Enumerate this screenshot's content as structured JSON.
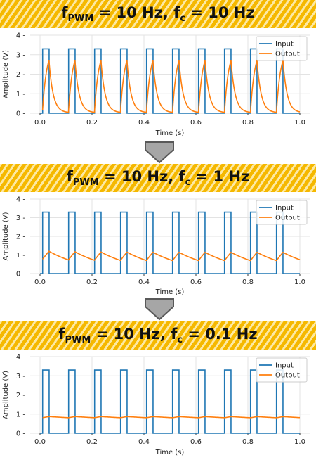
{
  "chart_data": [
    {
      "type": "line",
      "title": {
        "base": "f",
        "sub1": "PWM",
        "mid": " = 10 Hz, f",
        "sub2": "c",
        "end": " = 10 Hz"
      },
      "xlabel": "Time (s)",
      "ylabel": "Amplitude (V)",
      "xlim": [
        0,
        1.0
      ],
      "ylim": [
        0,
        4
      ],
      "xticks": [
        "0.0",
        "0.2",
        "0.4",
        "0.6",
        "0.8",
        "1.0"
      ],
      "yticks": [
        "0",
        "1",
        "2",
        "3",
        "4"
      ],
      "grid": true,
      "legend_position": "top-right",
      "pwm_frequency_hz": 10,
      "cutoff_frequency_hz": 10,
      "series": [
        {
          "name": "Input",
          "color": "#1f77b4",
          "high": 3.3,
          "low": 0,
          "period": 0.1,
          "duty": 0.25,
          "first_rise": 0.01
        },
        {
          "name": "Output",
          "color": "#ff7f0e",
          "peak": 2.7,
          "trough": 0.05,
          "rc_tau": 0.0159
        }
      ]
    },
    {
      "type": "line",
      "title": {
        "base": "f",
        "sub1": "PWM",
        "mid": " = 10 Hz, f",
        "sub2": "c",
        "end": " = 1 Hz"
      },
      "xlabel": "Time (s)",
      "ylabel": "Amplitude (V)",
      "xlim": [
        0,
        1.0
      ],
      "ylim": [
        0,
        4
      ],
      "xticks": [
        "0.0",
        "0.2",
        "0.4",
        "0.6",
        "0.8",
        "1.0"
      ],
      "yticks": [
        "0",
        "1",
        "2",
        "3",
        "4"
      ],
      "grid": true,
      "legend_position": "top-right",
      "pwm_frequency_hz": 10,
      "cutoff_frequency_hz": 1,
      "series": [
        {
          "name": "Input",
          "color": "#1f77b4",
          "high": 3.3,
          "low": 0,
          "period": 0.1,
          "duty": 0.25,
          "first_rise": 0.01
        },
        {
          "name": "Output",
          "color": "#ff7f0e",
          "peak": 1.15,
          "trough": 0.7,
          "rc_tau": 0.159
        }
      ]
    },
    {
      "type": "line",
      "title": {
        "base": "f",
        "sub1": "PWM",
        "mid": " = 10 Hz, f",
        "sub2": "c",
        "end": " = 0.1 Hz"
      },
      "xlabel": "Time (s)",
      "ylabel": "Amplitude (V)",
      "xlim": [
        0,
        1.0
      ],
      "ylim": [
        0,
        4
      ],
      "xticks": [
        "0.0",
        "0.2",
        "0.4",
        "0.6",
        "0.8",
        "1.0"
      ],
      "yticks": [
        "0",
        "1",
        "2",
        "3",
        "4"
      ],
      "grid": true,
      "legend_position": "top-right",
      "pwm_frequency_hz": 10,
      "cutoff_frequency_hz": 0.1,
      "series": [
        {
          "name": "Input",
          "color": "#1f77b4",
          "high": 3.3,
          "low": 0,
          "period": 0.1,
          "duty": 0.25,
          "first_rise": 0.01
        },
        {
          "name": "Output",
          "color": "#ff7f0e",
          "peak": 0.87,
          "trough": 0.81,
          "rc_tau": 1.59
        }
      ]
    }
  ],
  "colors": {
    "banner_stripe_dark": "#f5b800",
    "banner_stripe_light": "#fde9a2",
    "arrow_fill": "#a6a6a6",
    "arrow_stroke": "#595959"
  }
}
